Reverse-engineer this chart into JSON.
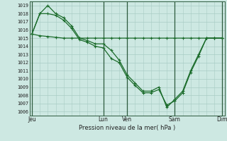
{
  "background_color": "#cde8e2",
  "grid_color": "#a8ccc4",
  "line_color": "#1a6b2a",
  "xlabel": "Pression niveau de la mer( hPa )",
  "ylim_min": 1005.5,
  "ylim_max": 1019.5,
  "yticks": [
    1006,
    1007,
    1008,
    1009,
    1010,
    1011,
    1012,
    1013,
    1014,
    1015,
    1016,
    1017,
    1018,
    1019
  ],
  "x_day_labels": [
    "Jeu",
    "Lun",
    "Ven",
    "Sam",
    "Dim"
  ],
  "x_day_positions": [
    0,
    9,
    12,
    18,
    24
  ],
  "xlim_min": -0.3,
  "xlim_max": 24.3,
  "s1": [
    1015.5,
    1018.0,
    1019.0,
    1018.0,
    1017.5,
    1016.5,
    1015.0,
    1014.7,
    1014.3,
    1014.3,
    1013.5,
    1012.3,
    1010.5,
    1009.5,
    1008.5,
    1008.5,
    1009.0,
    1006.5,
    1007.5,
    1008.5,
    1011.0,
    1013.0,
    1015.0,
    1015.0,
    1015.0
  ],
  "s2": [
    1015.5,
    1018.0,
    1018.0,
    1017.8,
    1017.2,
    1016.2,
    1014.8,
    1014.5,
    1014.0,
    1013.8,
    1012.5,
    1012.0,
    1010.2,
    1009.2,
    1008.3,
    1008.3,
    1008.7,
    1006.8,
    1007.3,
    1008.3,
    1010.8,
    1012.8,
    1015.0,
    1015.0,
    1015.0
  ],
  "s3": [
    1015.5,
    1015.3,
    1015.2,
    1015.1,
    1015.0,
    1015.0,
    1015.0,
    1015.0,
    1015.0,
    1015.0,
    1015.0,
    1015.0,
    1015.0,
    1015.0,
    1015.0,
    1015.0,
    1015.0,
    1015.0,
    1015.0,
    1015.0,
    1015.0,
    1015.0,
    1015.0,
    1015.0,
    1015.0
  ]
}
